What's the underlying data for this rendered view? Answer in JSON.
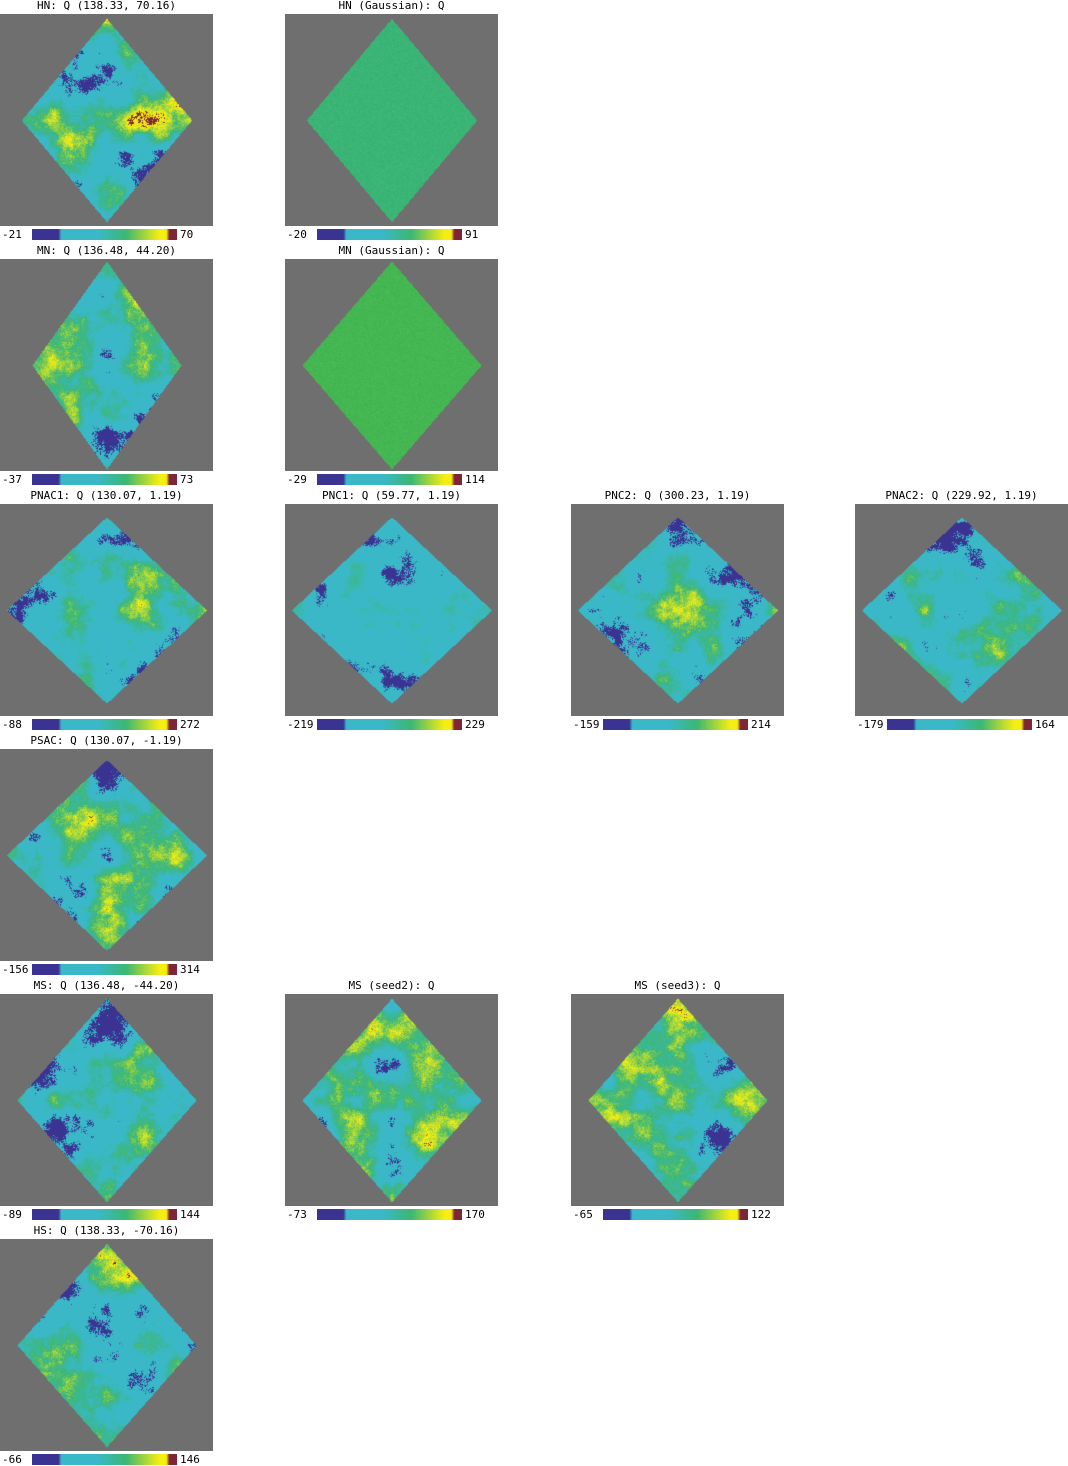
{
  "colors": {
    "background": "#6f6f6f",
    "low": "#3a3391",
    "mid_low": "#3ab8c8",
    "mid": "#3cb774",
    "high": "#f5ee12",
    "top": "#7e2637"
  },
  "panels": [
    {
      "title": "HN: Q (138.33, 70.16)",
      "cmin": "-21",
      "cmax": "70",
      "style": "noisy",
      "seed": 1
    },
    {
      "title": "HN (Gaussian): Q",
      "cmin": "-20",
      "cmax": "91",
      "style": "flat",
      "fill": "#3bb575",
      "seed": 2
    },
    {
      "title": "MN: Q (136.48, 44.20)",
      "cmin": "-37",
      "cmax": "73",
      "style": "noisy",
      "seed": 3
    },
    {
      "title": "MN (Gaussian): Q",
      "cmin": "-29",
      "cmax": "114",
      "style": "flat",
      "fill": "#45b752",
      "seed": 4
    },
    {
      "title": "PNAC1: Q (130.07, 1.19)",
      "cmin": "-88",
      "cmax": "272",
      "style": "noisy",
      "seed": 5
    },
    {
      "title": "PNC1: Q (59.77, 1.19)",
      "cmin": "-219",
      "cmax": "229",
      "style": "smooth",
      "seed": 6
    },
    {
      "title": "PNC2: Q (300.23, 1.19)",
      "cmin": "-159",
      "cmax": "214",
      "style": "noisy",
      "seed": 7
    },
    {
      "title": "PNAC2: Q (229.92, 1.19)",
      "cmin": "-179",
      "cmax": "164",
      "style": "noisy",
      "seed": 8
    },
    {
      "title": "PSAC: Q (130.07, -1.19)",
      "cmin": "-156",
      "cmax": "314",
      "style": "noisy",
      "seed": 9
    },
    {
      "title": "MS: Q (136.48, -44.20)",
      "cmin": "-89",
      "cmax": "144",
      "style": "noisy",
      "seed": 10
    },
    {
      "title": "MS (seed2): Q",
      "cmin": "-73",
      "cmax": "170",
      "style": "noisy",
      "seed": 11
    },
    {
      "title": "MS (seed3): Q",
      "cmin": "-65",
      "cmax": "122",
      "style": "noisy",
      "seed": 12
    },
    {
      "title": "HS: Q (138.33, -70.16)",
      "cmin": "-66",
      "cmax": "146",
      "style": "noisy",
      "seed": 13
    }
  ]
}
